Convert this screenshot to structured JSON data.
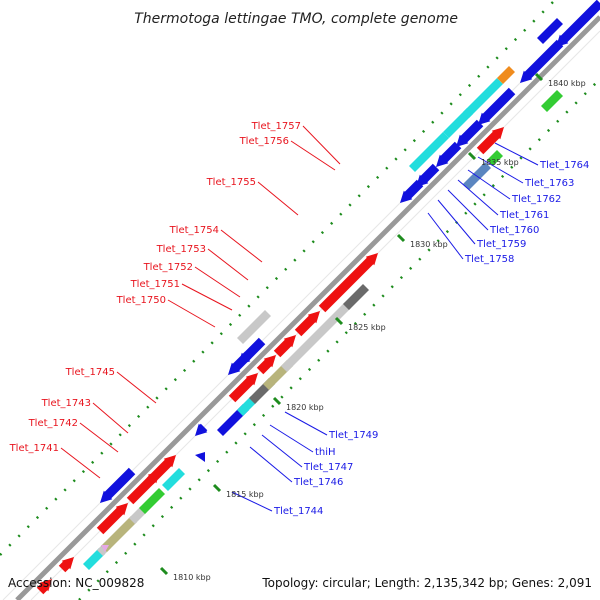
{
  "title": "Thermotoga lettingae TMO, complete genome",
  "footer": {
    "accession": "Accession: NC_009828",
    "topology": "Topology: circular; Length: 2,135,342 bp; Genes: 2,091"
  },
  "colors": {
    "backbone": "#999999",
    "forward_label": "#e8141e",
    "reverse_label": "#1a1ae6",
    "tick": "#1e8c1e",
    "gene_red": "#ee1111",
    "gene_blue": "#1111dd",
    "gene_cyan": "#22dddd",
    "gene_gray": "#c8c8c8",
    "gene_darkgray": "#6a6a6a",
    "gene_khaki": "#b8b47c",
    "gene_green": "#33cc33",
    "gene_orange": "#f08c1e",
    "gene_steel": "#5b86c0"
  },
  "kbp_labels": [
    "1810 kbp",
    "1815 kbp",
    "1820 kbp",
    "1825 kbp",
    "1830 kbp",
    "1835 kbp",
    "1840 kbp"
  ],
  "forward_labels": [
    "Tlet_1757",
    "Tlet_1756",
    "Tlet_1755",
    "Tlet_1754",
    "Tlet_1753",
    "Tlet_1752",
    "Tlet_1751",
    "Tlet_1750",
    "Tlet_1745",
    "Tlet_1743",
    "Tlet_1742",
    "Tlet_1741"
  ],
  "reverse_labels": [
    "Tlet_1764",
    "Tlet_1763",
    "Tlet_1762",
    "Tlet_1761",
    "Tlet_1760",
    "Tlet_1759",
    "Tlet_1758",
    "Tlet_1749",
    "thiH",
    "Tlet_1747",
    "Tlet_1746",
    "Tlet_1744"
  ]
}
